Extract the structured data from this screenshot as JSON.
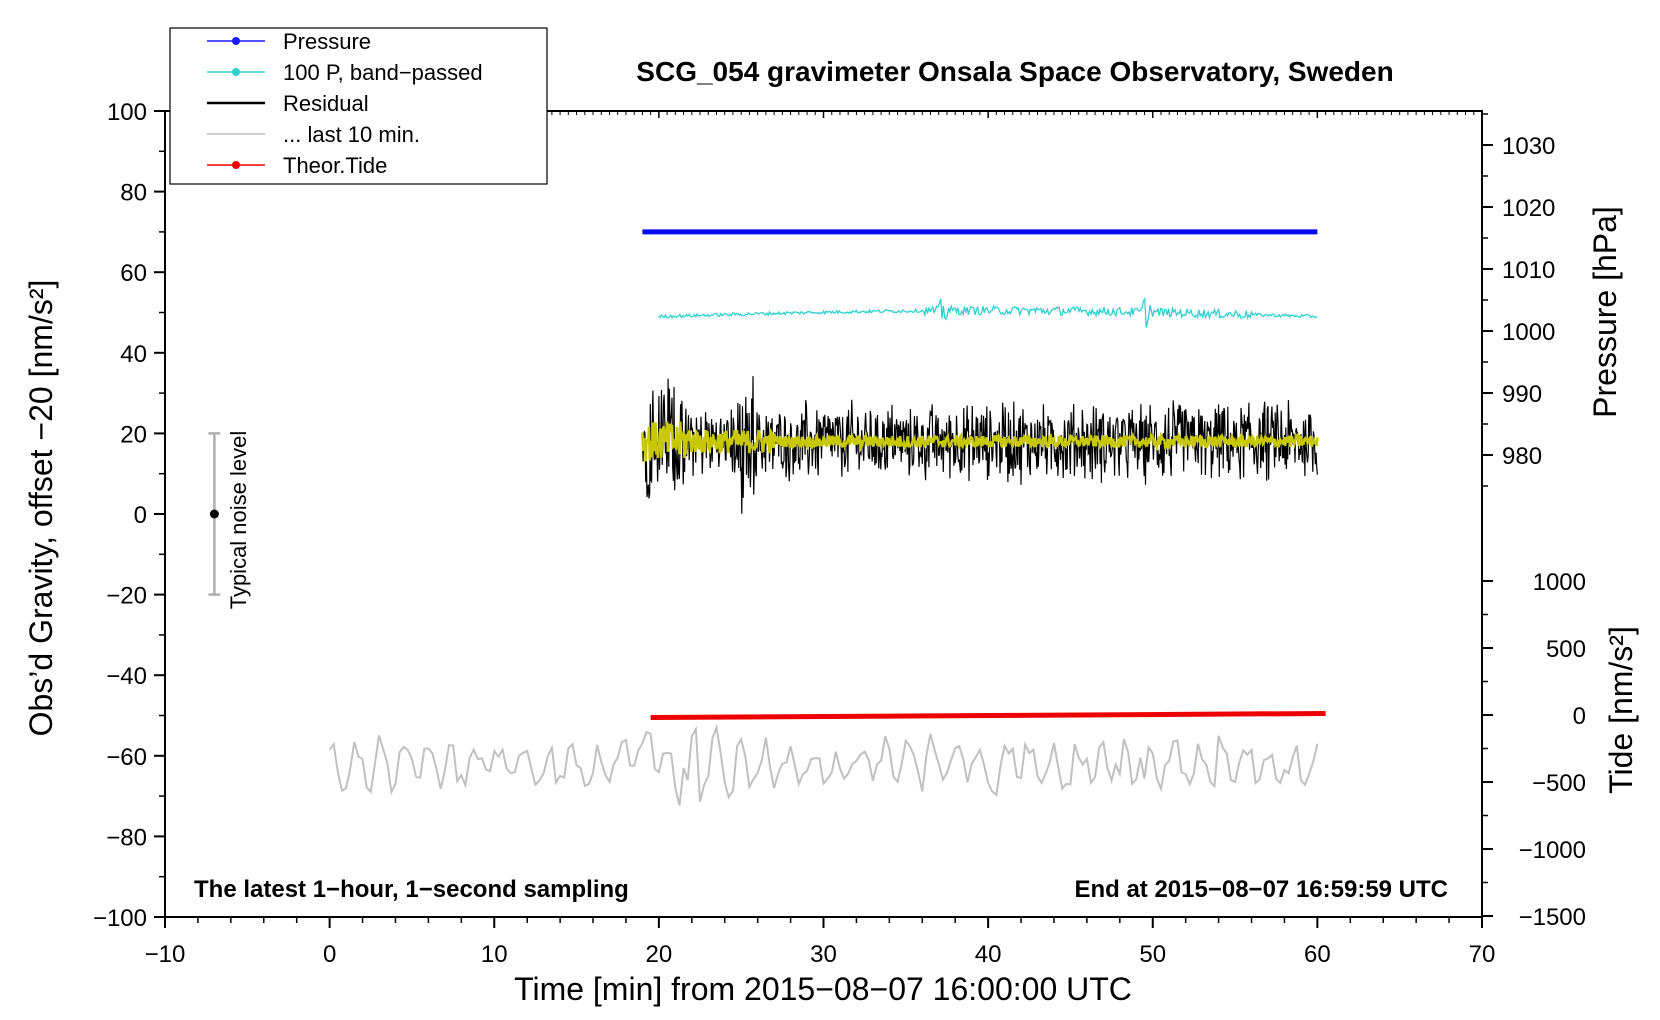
{
  "chart_data": {
    "type": "line",
    "title": "SCG_054 gravimeter Onsala Space Observatory, Sweden",
    "xlabel": "Time [min] from 2015−08−07 16:00:00 UTC",
    "ylabel": "Obs’d Gravity, offset −20 [nm/s²]",
    "xlim": [
      -10,
      70
    ],
    "ylim": [
      -100,
      100
    ],
    "x_ticks": [
      -10,
      0,
      10,
      20,
      30,
      40,
      50,
      60,
      70
    ],
    "x_tick_labels": [
      "−10",
      "0",
      "10",
      "20",
      "30",
      "40",
      "50",
      "60",
      "70"
    ],
    "y_ticks": [
      -100,
      -80,
      -60,
      -40,
      -20,
      0,
      20,
      40,
      60,
      80,
      100
    ],
    "y_tick_labels": [
      "−100",
      "−80",
      "−60",
      "−40",
      "−20",
      "0",
      "20",
      "40",
      "60",
      "80",
      "100"
    ],
    "pressure_axis": {
      "label": "Pressure [hPa]",
      "ticks": [
        980,
        990,
        1000,
        1010,
        1020,
        1030
      ],
      "tick_labels": [
        "980",
        "990",
        "1000",
        "1010",
        "1020",
        "1030"
      ]
    },
    "tide_axis": {
      "label": "Tide [nm/s²]",
      "ticks": [
        -1500,
        -1000,
        -500,
        0,
        500,
        1000
      ],
      "tick_labels": [
        "−1500",
        "−1000",
        "−500",
        "0",
        "500",
        "1000"
      ]
    },
    "legend": {
      "placement": "top-left",
      "entries": [
        {
          "label": "Pressure",
          "color": "#1a1aff",
          "marker": true
        },
        {
          "label": "100 P, band−passed",
          "color": "#30d0d0",
          "marker": true
        },
        {
          "label": "Residual",
          "color": "#000000",
          "marker": false
        },
        {
          "label": "... last 10 min.",
          "color": "#c0c0c0",
          "marker": false
        },
        {
          "label": "Theor.Tide",
          "color": "#ee0000",
          "marker": true
        }
      ]
    },
    "annotations": {
      "noise_label": "Typical noise level",
      "noise_center": 0,
      "noise_range": [
        -20,
        20
      ],
      "noise_x": -7,
      "bottom_left": "The latest 1−hour, 1−second sampling",
      "bottom_right": "End at 2015−08−07 16:59:59 UTC"
    },
    "series": [
      {
        "name": "Pressure",
        "color": "#0a0aee",
        "x": [
          19,
          60
        ],
        "y": [
          70,
          70
        ]
      },
      {
        "name": "100 P, band−passed",
        "color": "#30d0d0",
        "x_range": [
          20,
          60
        ],
        "baseline": 49.5
      },
      {
        "name": "Residual",
        "color": "#000000",
        "x_range": [
          19,
          60
        ],
        "baseline": 18
      },
      {
        "name": "... last 10 min.",
        "color": "#c0c0c0",
        "x_range": [
          0,
          60
        ],
        "baseline": -62
      },
      {
        "name": "Theor.Tide",
        "color": "#ee0000",
        "x": [
          19.5,
          60.5
        ],
        "y": [
          -50.5,
          -49.5
        ]
      }
    ]
  }
}
